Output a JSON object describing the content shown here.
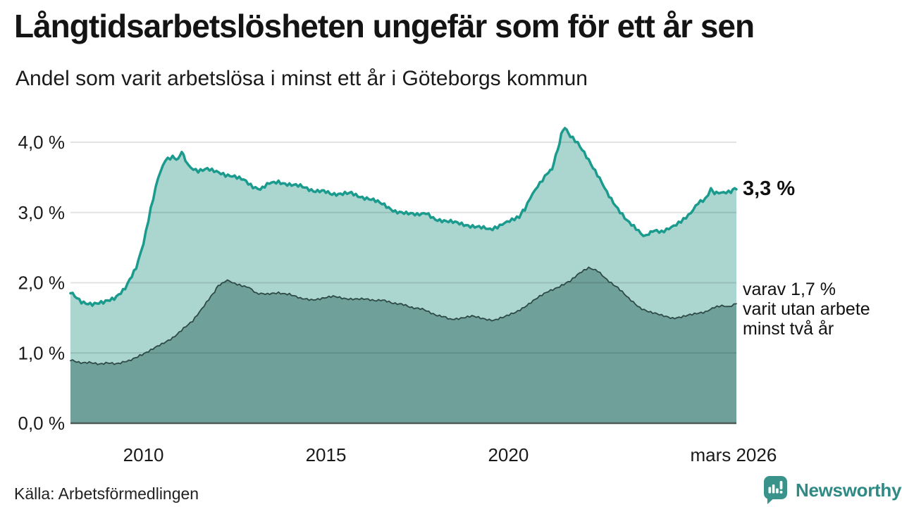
{
  "header": {
    "title": "Långtidsarbetslösheten ungefär som för ett år sen",
    "subtitle": "Andel som varit arbetslösa i minst ett år i Göteborgs kommun"
  },
  "chart_data": {
    "type": "area",
    "title": "Långtidsarbetslösheten ungefär som för ett år sen",
    "subtitle": "Andel som varit arbetslösa i minst ett år i Göteborgs kommun",
    "unit": "%",
    "grid": "horizontal",
    "legend_position": "end-of-line-labels",
    "x_axis": {
      "range": [
        2008.0,
        2026.25
      ],
      "ticks": [
        {
          "label": "2010",
          "t": 2010
        },
        {
          "label": "2015",
          "t": 2015
        },
        {
          "label": "2020",
          "t": 2020
        },
        {
          "label": "mars 2026",
          "t": 2026.17
        }
      ]
    },
    "y_axis": {
      "range": [
        0,
        4.35
      ],
      "tick_values": [
        0,
        1,
        2,
        3,
        4
      ],
      "tick_labels": [
        "0,0 %",
        "1,0 %",
        "2,0 %",
        "3,0 %",
        "4,0 %"
      ]
    },
    "series": [
      {
        "name": "Arbetslösa minst ett år",
        "line_color": "#1b9b8d",
        "fill_color": "#abd6d0",
        "line_width": 3.5,
        "end_value": 3.3,
        "points": [
          [
            2008.0,
            1.85
          ],
          [
            2008.3,
            1.73
          ],
          [
            2008.6,
            1.7
          ],
          [
            2008.9,
            1.71
          ],
          [
            2009.2,
            1.78
          ],
          [
            2009.5,
            1.93
          ],
          [
            2009.8,
            2.2
          ],
          [
            2010.0,
            2.55
          ],
          [
            2010.2,
            3.05
          ],
          [
            2010.4,
            3.5
          ],
          [
            2010.6,
            3.76
          ],
          [
            2010.8,
            3.8
          ],
          [
            2010.95,
            3.74
          ],
          [
            2011.05,
            3.89
          ],
          [
            2011.15,
            3.72
          ],
          [
            2011.3,
            3.64
          ],
          [
            2011.5,
            3.6
          ],
          [
            2011.75,
            3.63
          ],
          [
            2012.0,
            3.58
          ],
          [
            2012.25,
            3.52
          ],
          [
            2012.5,
            3.5
          ],
          [
            2012.75,
            3.46
          ],
          [
            2013.0,
            3.36
          ],
          [
            2013.2,
            3.32
          ],
          [
            2013.45,
            3.42
          ],
          [
            2013.7,
            3.44
          ],
          [
            2014.0,
            3.4
          ],
          [
            2014.3,
            3.37
          ],
          [
            2014.6,
            3.32
          ],
          [
            2015.0,
            3.29
          ],
          [
            2015.4,
            3.25
          ],
          [
            2015.7,
            3.28
          ],
          [
            2016.0,
            3.22
          ],
          [
            2016.3,
            3.17
          ],
          [
            2016.6,
            3.11
          ],
          [
            2016.9,
            3.02
          ],
          [
            2017.2,
            2.98
          ],
          [
            2017.5,
            2.97
          ],
          [
            2017.75,
            3.0
          ],
          [
            2018.0,
            2.91
          ],
          [
            2018.3,
            2.87
          ],
          [
            2018.6,
            2.85
          ],
          [
            2018.9,
            2.82
          ],
          [
            2019.2,
            2.79
          ],
          [
            2019.5,
            2.75
          ],
          [
            2019.7,
            2.78
          ],
          [
            2019.9,
            2.84
          ],
          [
            2020.1,
            2.89
          ],
          [
            2020.3,
            2.94
          ],
          [
            2020.45,
            3.05
          ],
          [
            2020.6,
            3.2
          ],
          [
            2020.8,
            3.36
          ],
          [
            2021.0,
            3.5
          ],
          [
            2021.1,
            3.58
          ],
          [
            2021.2,
            3.62
          ],
          [
            2021.3,
            3.8
          ],
          [
            2021.45,
            4.1
          ],
          [
            2021.55,
            4.22
          ],
          [
            2021.7,
            4.08
          ],
          [
            2021.9,
            3.98
          ],
          [
            2022.2,
            3.74
          ],
          [
            2022.5,
            3.5
          ],
          [
            2022.7,
            3.3
          ],
          [
            2023.0,
            3.05
          ],
          [
            2023.25,
            2.88
          ],
          [
            2023.5,
            2.76
          ],
          [
            2023.7,
            2.66
          ],
          [
            2023.85,
            2.7
          ],
          [
            2024.0,
            2.74
          ],
          [
            2024.2,
            2.71
          ],
          [
            2024.4,
            2.76
          ],
          [
            2024.6,
            2.82
          ],
          [
            2024.8,
            2.9
          ],
          [
            2025.0,
            3.0
          ],
          [
            2025.2,
            3.15
          ],
          [
            2025.4,
            3.2
          ],
          [
            2025.55,
            3.32
          ],
          [
            2025.7,
            3.28
          ],
          [
            2025.9,
            3.29
          ],
          [
            2026.1,
            3.31
          ],
          [
            2026.25,
            3.33
          ]
        ]
      },
      {
        "name": "varav arbetslösa minst två år",
        "line_color": "#2e4a45",
        "fill_color": "#6fa09a",
        "line_width": 1.8,
        "end_value": 1.7,
        "points": [
          [
            2008.0,
            0.89
          ],
          [
            2008.4,
            0.86
          ],
          [
            2008.8,
            0.85
          ],
          [
            2009.2,
            0.85
          ],
          [
            2009.6,
            0.88
          ],
          [
            2009.9,
            0.97
          ],
          [
            2010.2,
            1.04
          ],
          [
            2010.5,
            1.12
          ],
          [
            2010.8,
            1.22
          ],
          [
            2011.1,
            1.35
          ],
          [
            2011.35,
            1.45
          ],
          [
            2011.6,
            1.62
          ],
          [
            2011.85,
            1.8
          ],
          [
            2012.0,
            1.92
          ],
          [
            2012.15,
            2.0
          ],
          [
            2012.3,
            2.03
          ],
          [
            2012.5,
            1.98
          ],
          [
            2012.7,
            1.95
          ],
          [
            2012.9,
            1.93
          ],
          [
            2013.1,
            1.85
          ],
          [
            2013.4,
            1.83
          ],
          [
            2013.7,
            1.86
          ],
          [
            2014.0,
            1.84
          ],
          [
            2014.3,
            1.77
          ],
          [
            2014.6,
            1.76
          ],
          [
            2014.9,
            1.78
          ],
          [
            2015.2,
            1.8
          ],
          [
            2015.5,
            1.78
          ],
          [
            2015.8,
            1.77
          ],
          [
            2016.1,
            1.76
          ],
          [
            2016.5,
            1.75
          ],
          [
            2016.9,
            1.71
          ],
          [
            2017.3,
            1.66
          ],
          [
            2017.7,
            1.61
          ],
          [
            2018.0,
            1.55
          ],
          [
            2018.4,
            1.48
          ],
          [
            2018.7,
            1.5
          ],
          [
            2019.0,
            1.52
          ],
          [
            2019.3,
            1.49
          ],
          [
            2019.6,
            1.47
          ],
          [
            2019.9,
            1.51
          ],
          [
            2020.2,
            1.58
          ],
          [
            2020.5,
            1.68
          ],
          [
            2020.8,
            1.78
          ],
          [
            2021.1,
            1.88
          ],
          [
            2021.4,
            1.95
          ],
          [
            2021.7,
            2.02
          ],
          [
            2021.95,
            2.13
          ],
          [
            2022.2,
            2.21
          ],
          [
            2022.45,
            2.17
          ],
          [
            2022.7,
            2.05
          ],
          [
            2023.0,
            1.93
          ],
          [
            2023.3,
            1.77
          ],
          [
            2023.6,
            1.65
          ],
          [
            2023.9,
            1.58
          ],
          [
            2024.2,
            1.53
          ],
          [
            2024.5,
            1.5
          ],
          [
            2024.8,
            1.52
          ],
          [
            2025.1,
            1.55
          ],
          [
            2025.4,
            1.59
          ],
          [
            2025.65,
            1.66
          ],
          [
            2025.85,
            1.68
          ],
          [
            2026.05,
            1.66
          ],
          [
            2026.25,
            1.7
          ]
        ]
      }
    ],
    "annotations": {
      "end_value_label": "3,3 %",
      "end_note_lines": [
        "varav 1,7 %",
        "varit utan arbete",
        "minst två år"
      ]
    },
    "colors": {
      "gridline": "rgba(0,0,0,0.11)",
      "baseline": "#4d5b57",
      "background": "#ffffff"
    }
  },
  "footer": {
    "source": "Källa: Arbetsförmedlingen",
    "brand": "Newsworthy"
  }
}
